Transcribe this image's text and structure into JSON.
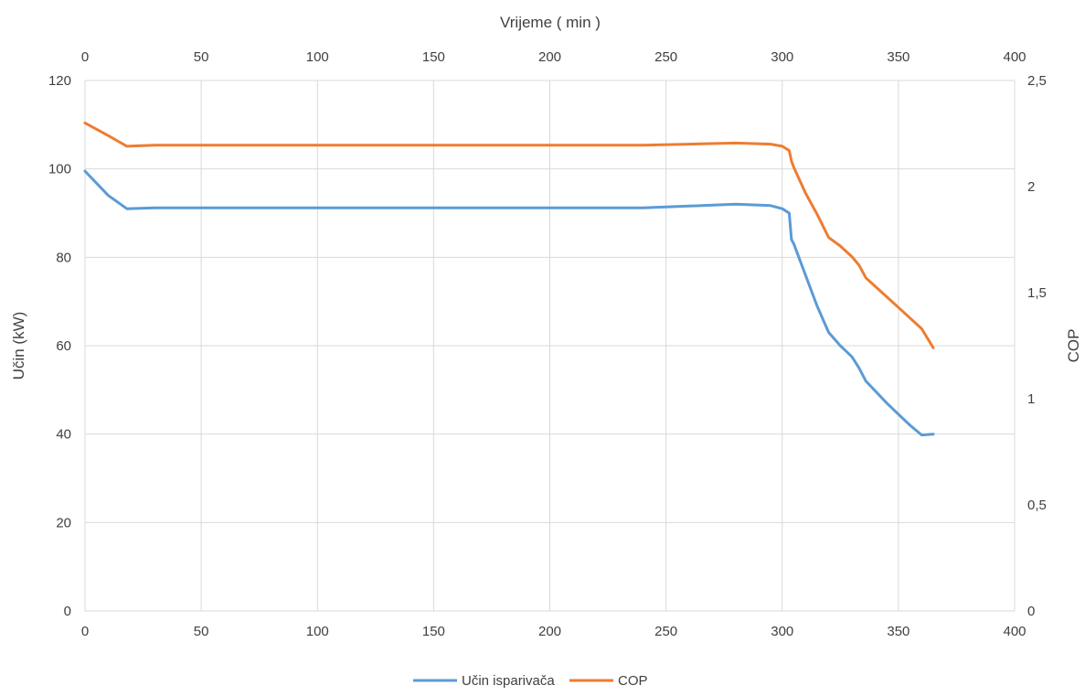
{
  "chart_data": {
    "type": "line",
    "top_axis_title": "Vrijeme ( min )",
    "left_axis_title": "Učin (kW)",
    "right_axis_title": "COP",
    "x_range": [
      0,
      400
    ],
    "left_y_range": [
      0,
      120
    ],
    "right_y_range": [
      0,
      2.5
    ],
    "x_ticks": [
      "0",
      "50",
      "100",
      "150",
      "200",
      "250",
      "300",
      "350",
      "400"
    ],
    "left_y_ticks": [
      "0",
      "20",
      "40",
      "60",
      "80",
      "100",
      "120"
    ],
    "right_y_ticks": [
      "0",
      "0,5",
      "1",
      "1,5",
      "2",
      "2,5"
    ],
    "grid": true,
    "legend_position": "bottom",
    "series": [
      {
        "name": "Učin isparivača",
        "axis": "left",
        "color": "#5B9BD5",
        "x": [
          0,
          10,
          18,
          30,
          60,
          120,
          240,
          260,
          280,
          295,
          300,
          303,
          304,
          305,
          310,
          315,
          320,
          325,
          330,
          333,
          336,
          340,
          345,
          350,
          355,
          360,
          365
        ],
        "y": [
          99.5,
          94,
          91,
          91.2,
          91.2,
          91.2,
          91.2,
          91.6,
          92,
          91.7,
          91,
          90,
          84,
          83,
          76,
          69,
          63,
          60,
          57.5,
          55,
          52,
          49.8,
          47,
          44.5,
          42,
          39.8,
          40
        ]
      },
      {
        "name": "COP",
        "axis": "right",
        "color": "#ED7D31",
        "x": [
          0,
          10,
          18,
          30,
          60,
          120,
          240,
          260,
          280,
          295,
          300,
          303,
          304,
          305,
          310,
          315,
          320,
          325,
          330,
          333,
          336,
          340,
          345,
          350,
          355,
          360,
          365
        ],
        "y": [
          2.3,
          2.24,
          2.19,
          2.195,
          2.195,
          2.195,
          2.195,
          2.2,
          2.205,
          2.2,
          2.19,
          2.17,
          2.12,
          2.09,
          1.97,
          1.87,
          1.76,
          1.72,
          1.67,
          1.63,
          1.57,
          1.53,
          1.48,
          1.43,
          1.38,
          1.33,
          1.24
        ]
      }
    ]
  }
}
